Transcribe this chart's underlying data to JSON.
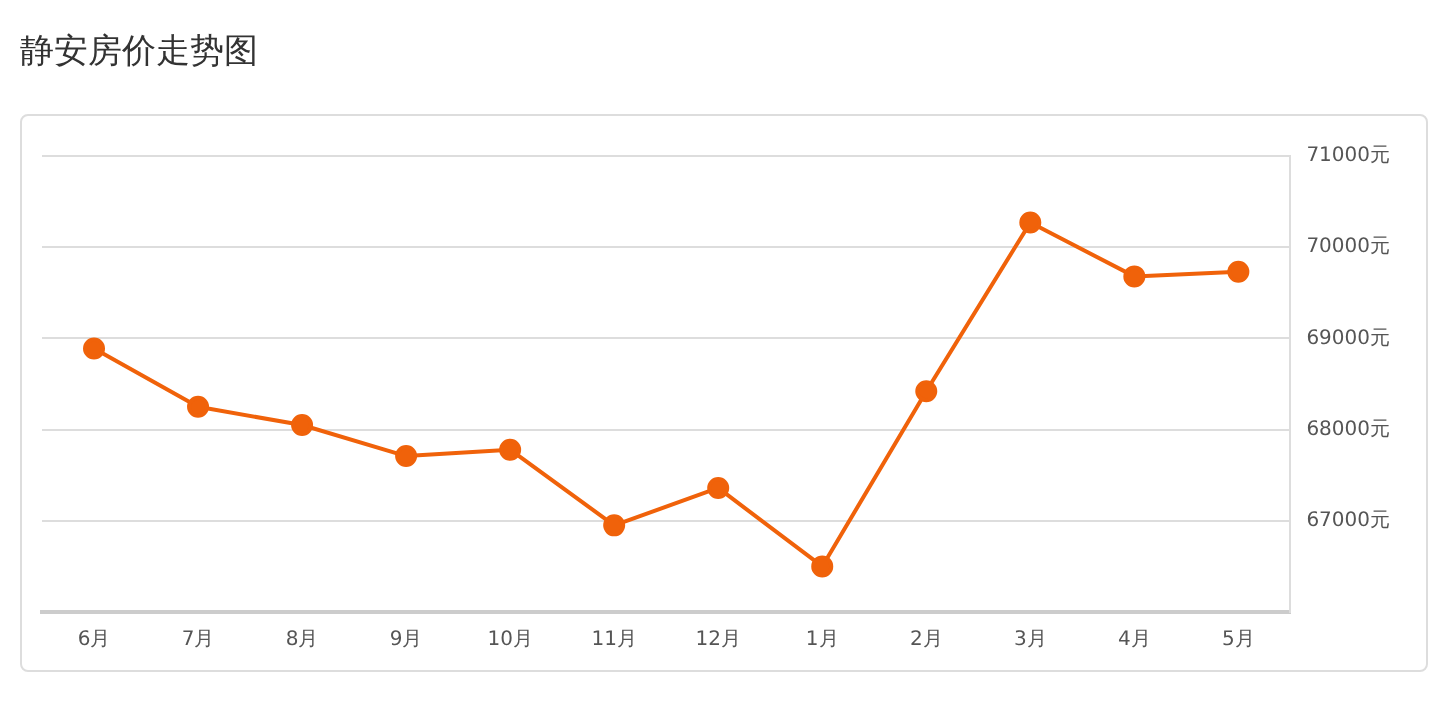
{
  "chart_data": {
    "type": "line",
    "title": "静安房价走势图",
    "categories": [
      "6月",
      "7月",
      "8月",
      "9月",
      "10月",
      "11月",
      "12月",
      "1月",
      "2月",
      "3月",
      "4月",
      "5月"
    ],
    "series": [
      {
        "color": "#f0620a",
        "values": [
          68890,
          68250,
          68050,
          67710,
          67780,
          66950,
          67360,
          66500,
          68420,
          70270,
          69680,
          69730
        ]
      }
    ],
    "ylim": [
      66000,
      71000
    ],
    "yticks": [
      {
        "value": 66000,
        "label": null
      },
      {
        "value": 67000,
        "label": "67000元"
      },
      {
        "value": 68000,
        "label": "68000元"
      },
      {
        "value": 69000,
        "label": "69000元"
      },
      {
        "value": 70000,
        "label": "70000元"
      },
      {
        "value": 71000,
        "label": "71000元"
      }
    ],
    "grid": "y",
    "legend": false,
    "marker": "circle",
    "line_style": "solid"
  }
}
